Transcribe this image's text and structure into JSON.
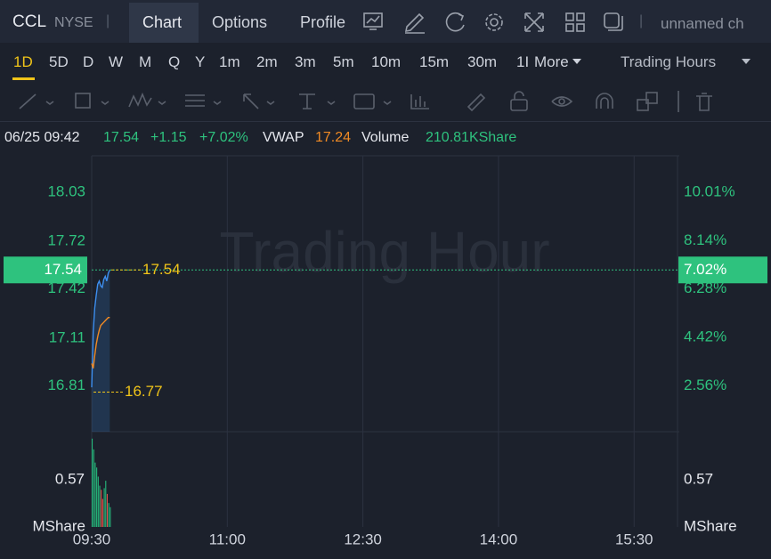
{
  "header": {
    "symbol": "CCL",
    "exchange": "NYSE",
    "tabs": [
      "Chart",
      "Options",
      "Profile"
    ],
    "account": "unnamed ch"
  },
  "periods": {
    "items": [
      "1D",
      "5D",
      "D",
      "W",
      "M",
      "Q",
      "Y",
      "1m",
      "2m",
      "3m",
      "5m",
      "10m",
      "15m",
      "30m",
      "1I"
    ],
    "more": "More",
    "session": "Trading Hours"
  },
  "info": {
    "time": "06/25 09:42",
    "price": "17.54",
    "change": "+1.15",
    "change_pct": "+7.02%",
    "vwap_label": "VWAP",
    "vwap": "17.24",
    "volume_label": "Volume",
    "volume": "210.81KShare"
  },
  "chart_data": {
    "type": "line",
    "watermark": "Trading Hour",
    "x": [
      "09:30",
      "09:31",
      "09:32",
      "09:33",
      "09:34",
      "09:35",
      "09:36",
      "09:37",
      "09:38",
      "09:39",
      "09:40",
      "09:41",
      "09:42"
    ],
    "series": [
      {
        "name": "Price",
        "color": "#3d8ff0",
        "values": [
          16.8,
          17.15,
          17.3,
          17.38,
          17.45,
          17.47,
          17.44,
          17.43,
          17.48,
          17.5,
          17.47,
          17.52,
          17.54
        ]
      },
      {
        "name": "VWAP",
        "color": "#f08a24",
        "values": [
          16.95,
          16.92,
          17.0,
          17.07,
          17.12,
          17.16,
          17.19,
          17.2,
          17.21,
          17.22,
          17.23,
          17.24,
          17.24
        ]
      }
    ],
    "volume": {
      "values": [
        1.07,
        0.94,
        0.78,
        0.72,
        0.61,
        0.5,
        0.45,
        0.34,
        0.47,
        0.56,
        0.4,
        0.29,
        0.24
      ],
      "up_color": "#26b97c",
      "down_color": "#e0514b",
      "ylim": [
        0,
        1.1
      ],
      "yticks": [
        0.57
      ],
      "unit": "MShare"
    },
    "xlim": [
      "09:30",
      "16:00"
    ],
    "xticks": [
      "09:30",
      "11:00",
      "12:30",
      "14:00",
      "15:30"
    ],
    "ylim": [
      16.52,
      18.26
    ],
    "yticks": [
      18.03,
      17.72,
      17.42,
      17.11,
      16.81
    ],
    "y2lim": [
      0.79,
      11.41
    ],
    "y2ticks": [
      {
        "value": 10.01,
        "label": "10.01%"
      },
      {
        "value": 8.14,
        "label": "8.14%"
      },
      {
        "value": 6.28,
        "label": "6.28%"
      },
      {
        "value": 4.42,
        "label": "4.42%"
      },
      {
        "value": 2.56,
        "label": "2.56%"
      }
    ],
    "last_price": 17.54,
    "last_pct": {
      "value": 7.02,
      "label": "7.02%"
    },
    "high": 17.54,
    "low": 16.77,
    "grid": true
  }
}
